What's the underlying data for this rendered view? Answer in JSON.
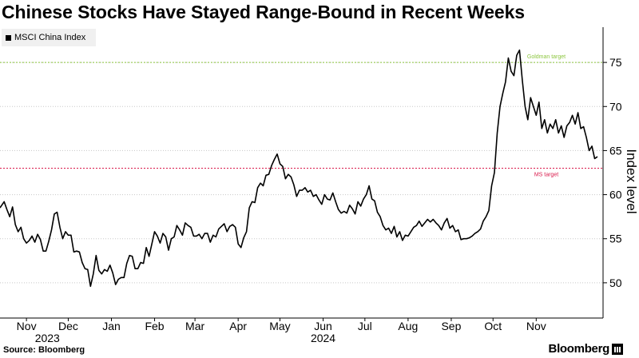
{
  "chart_data": {
    "type": "line",
    "title": "Chinese Stocks Have Stayed Range-Bound in Recent Weeks",
    "legend": "MSCI China Index",
    "legend_position": "top-left",
    "ylabel": "Index level",
    "ylim": [
      46,
      79
    ],
    "yticks": [
      50,
      55,
      60,
      65,
      70,
      75
    ],
    "grid": "horizontal-dotted",
    "xticks": [
      {
        "label": "Nov",
        "day": 19
      },
      {
        "label": "Dec",
        "day": 49
      },
      {
        "label": "Jan",
        "day": 80
      },
      {
        "label": "Feb",
        "day": 111
      },
      {
        "label": "Mar",
        "day": 140
      },
      {
        "label": "Apr",
        "day": 171
      },
      {
        "label": "May",
        "day": 201
      },
      {
        "label": "Jun",
        "day": 232
      },
      {
        "label": "Jul",
        "day": 262
      },
      {
        "label": "Aug",
        "day": 293
      },
      {
        "label": "Sep",
        "day": 324
      },
      {
        "label": "Oct",
        "day": 354
      },
      {
        "label": "Nov",
        "day": 385
      }
    ],
    "year_labels": [
      {
        "label": "2023",
        "day": 34
      },
      {
        "label": "2024",
        "day": 232
      }
    ],
    "reference_lines": [
      {
        "label": "Goldman target",
        "value": 75,
        "color": "#8cc63f"
      },
      {
        "label": "MS target",
        "value": 63,
        "color": "#d9184a"
      }
    ],
    "series": [
      {
        "name": "MSCI China Index",
        "color": "#000000",
        "points": [
          [
            0,
            58.5
          ],
          [
            3,
            59.2
          ],
          [
            5,
            58.3
          ],
          [
            7,
            57.5
          ],
          [
            9,
            58.6
          ],
          [
            11,
            56.6
          ],
          [
            13,
            55.8
          ],
          [
            15,
            56.3
          ],
          [
            17,
            55.0
          ],
          [
            19,
            54.5
          ],
          [
            21,
            54.8
          ],
          [
            23,
            55.3
          ],
          [
            25,
            54.6
          ],
          [
            27,
            55.5
          ],
          [
            29,
            54.9
          ],
          [
            31,
            53.6
          ],
          [
            33,
            53.6
          ],
          [
            35,
            54.7
          ],
          [
            37,
            56.0
          ],
          [
            39,
            57.8
          ],
          [
            41,
            58.0
          ],
          [
            43,
            56.3
          ],
          [
            45,
            55.0
          ],
          [
            47,
            55.8
          ],
          [
            49,
            55.4
          ],
          [
            51,
            55.4
          ],
          [
            53,
            53.5
          ],
          [
            55,
            53.6
          ],
          [
            57,
            53.5
          ],
          [
            59,
            52.3
          ],
          [
            61,
            51.6
          ],
          [
            63,
            51.5
          ],
          [
            65,
            49.6
          ],
          [
            67,
            51.0
          ],
          [
            69,
            53.1
          ],
          [
            71,
            51.4
          ],
          [
            73,
            51.0
          ],
          [
            75,
            51.5
          ],
          [
            77,
            51.3
          ],
          [
            79,
            52.0
          ],
          [
            81,
            51.1
          ],
          [
            83,
            49.8
          ],
          [
            85,
            50.4
          ],
          [
            87,
            50.6
          ],
          [
            89,
            50.6
          ],
          [
            91,
            52.2
          ],
          [
            93,
            53.1
          ],
          [
            95,
            53.0
          ],
          [
            97,
            51.6
          ],
          [
            99,
            51.6
          ],
          [
            101,
            52.3
          ],
          [
            103,
            52.2
          ],
          [
            105,
            54.0
          ],
          [
            107,
            53.0
          ],
          [
            109,
            54.4
          ],
          [
            111,
            55.8
          ],
          [
            113,
            55.3
          ],
          [
            115,
            54.5
          ],
          [
            117,
            55.6
          ],
          [
            119,
            55.2
          ],
          [
            121,
            53.7
          ],
          [
            123,
            55.0
          ],
          [
            125,
            55.2
          ],
          [
            127,
            56.5
          ],
          [
            129,
            56.0
          ],
          [
            131,
            55.4
          ],
          [
            133,
            56.8
          ],
          [
            135,
            56.5
          ],
          [
            137,
            56.3
          ],
          [
            139,
            55.3
          ],
          [
            141,
            55.3
          ],
          [
            143,
            55.5
          ],
          [
            145,
            55.0
          ],
          [
            147,
            55.6
          ],
          [
            149,
            55.6
          ],
          [
            151,
            54.6
          ],
          [
            153,
            55.4
          ],
          [
            155,
            55.2
          ],
          [
            157,
            56.1
          ],
          [
            159,
            56.4
          ],
          [
            161,
            56.7
          ],
          [
            163,
            55.8
          ],
          [
            165,
            56.4
          ],
          [
            167,
            56.6
          ],
          [
            169,
            56.3
          ],
          [
            171,
            54.4
          ],
          [
            173,
            54.0
          ],
          [
            175,
            55.1
          ],
          [
            177,
            55.8
          ],
          [
            179,
            58.5
          ],
          [
            181,
            59.2
          ],
          [
            183,
            59.1
          ],
          [
            185,
            60.8
          ],
          [
            187,
            61.3
          ],
          [
            189,
            61.0
          ],
          [
            191,
            62.2
          ],
          [
            193,
            62.3
          ],
          [
            195,
            63.3
          ],
          [
            197,
            64.0
          ],
          [
            199,
            64.6
          ],
          [
            201,
            63.5
          ],
          [
            203,
            63.2
          ],
          [
            205,
            61.8
          ],
          [
            207,
            62.3
          ],
          [
            209,
            62.0
          ],
          [
            211,
            61.1
          ],
          [
            213,
            59.8
          ],
          [
            215,
            60.5
          ],
          [
            217,
            60.5
          ],
          [
            219,
            60.8
          ],
          [
            221,
            60.3
          ],
          [
            223,
            60.5
          ],
          [
            225,
            59.8
          ],
          [
            227,
            60.0
          ],
          [
            229,
            59.4
          ],
          [
            231,
            58.9
          ],
          [
            233,
            60.0
          ],
          [
            235,
            59.5
          ],
          [
            237,
            59.4
          ],
          [
            239,
            60.2
          ],
          [
            241,
            59.2
          ],
          [
            243,
            58.3
          ],
          [
            245,
            57.9
          ],
          [
            247,
            58.1
          ],
          [
            249,
            57.9
          ],
          [
            251,
            58.8
          ],
          [
            253,
            58.4
          ],
          [
            255,
            57.8
          ],
          [
            257,
            59.2
          ],
          [
            259,
            58.7
          ],
          [
            261,
            59.5
          ],
          [
            263,
            60.0
          ],
          [
            265,
            61.0
          ],
          [
            267,
            59.5
          ],
          [
            269,
            59.3
          ],
          [
            271,
            58.0
          ],
          [
            273,
            57.5
          ],
          [
            275,
            56.5
          ],
          [
            277,
            56.0
          ],
          [
            279,
            56.2
          ],
          [
            281,
            55.6
          ],
          [
            283,
            56.4
          ],
          [
            285,
            55.2
          ],
          [
            287,
            55.8
          ],
          [
            289,
            54.8
          ],
          [
            291,
            55.4
          ],
          [
            293,
            55.3
          ],
          [
            295,
            55.8
          ],
          [
            297,
            56.3
          ],
          [
            299,
            56.5
          ],
          [
            301,
            57.0
          ],
          [
            303,
            56.4
          ],
          [
            305,
            56.8
          ],
          [
            307,
            57.2
          ],
          [
            309,
            56.9
          ],
          [
            311,
            57.2
          ],
          [
            313,
            56.8
          ],
          [
            315,
            56.5
          ],
          [
            317,
            56.0
          ],
          [
            319,
            56.8
          ],
          [
            321,
            57.3
          ],
          [
            323,
            56.2
          ],
          [
            325,
            56.5
          ],
          [
            327,
            55.8
          ],
          [
            329,
            56.0
          ],
          [
            331,
            54.9
          ],
          [
            333,
            55.0
          ],
          [
            335,
            55.0
          ],
          [
            337,
            55.1
          ],
          [
            339,
            55.3
          ],
          [
            341,
            55.6
          ],
          [
            343,
            55.8
          ],
          [
            345,
            56.1
          ],
          [
            347,
            57.0
          ],
          [
            349,
            57.5
          ],
          [
            351,
            58.2
          ],
          [
            353,
            61.0
          ],
          [
            355,
            62.5
          ],
          [
            357,
            67.0
          ],
          [
            359,
            70.0
          ],
          [
            361,
            71.5
          ],
          [
            363,
            72.8
          ],
          [
            365,
            75.5
          ],
          [
            367,
            74.0
          ],
          [
            369,
            73.5
          ],
          [
            371,
            75.8
          ],
          [
            373,
            76.4
          ],
          [
            375,
            73.0
          ],
          [
            377,
            70.0
          ],
          [
            379,
            68.5
          ],
          [
            381,
            71.0
          ],
          [
            383,
            70.0
          ],
          [
            385,
            69.0
          ],
          [
            387,
            70.5
          ],
          [
            389,
            67.5
          ],
          [
            391,
            68.5
          ],
          [
            393,
            67.0
          ],
          [
            395,
            68.0
          ],
          [
            397,
            67.5
          ],
          [
            399,
            68.5
          ],
          [
            401,
            67.0
          ],
          [
            403,
            67.8
          ],
          [
            405,
            66.5
          ],
          [
            407,
            67.8
          ],
          [
            409,
            68.2
          ],
          [
            411,
            69.0
          ],
          [
            413,
            68.0
          ],
          [
            415,
            69.3
          ],
          [
            417,
            67.5
          ],
          [
            419,
            67.7
          ],
          [
            421,
            66.5
          ],
          [
            423,
            65.0
          ],
          [
            425,
            65.5
          ],
          [
            427,
            64.1
          ],
          [
            429,
            64.3
          ]
        ]
      }
    ]
  },
  "footer": {
    "source": "Source: Bloomberg",
    "brand": "Bloomberg"
  }
}
